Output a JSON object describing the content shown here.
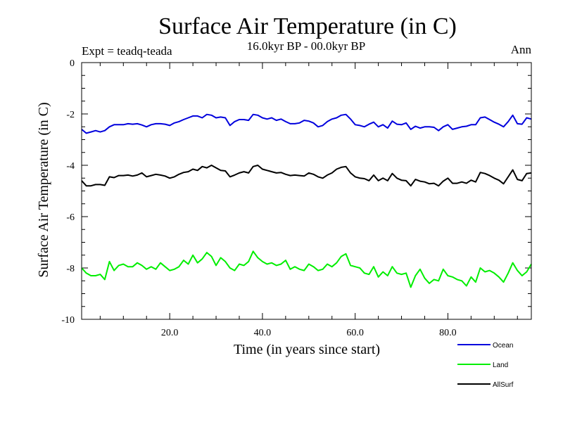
{
  "chart_data": {
    "type": "line",
    "title": "Surface Air Temperature (in C)",
    "subtitle": "16.0kyr BP - 00.0kyr BP",
    "experiment": "Expt = teadq-teada",
    "season": "Ann",
    "xlabel": "Time (in years since start)",
    "ylabel": "Surface Air Temperature (in C)",
    "xlim": [
      1,
      98
    ],
    "ylim": [
      -10,
      0
    ],
    "x_ticks": [
      20,
      40,
      60,
      80
    ],
    "x_tick_labels": [
      "20.0",
      "40.0",
      "60.0",
      "80.0"
    ],
    "y_ticks": [
      0,
      -2,
      -4,
      -6,
      -8,
      -10
    ],
    "y_tick_labels": [
      "0",
      "-2",
      "-4",
      "-6",
      "-8",
      "-10"
    ],
    "x": [
      1,
      2,
      3,
      4,
      5,
      6,
      7,
      8,
      9,
      10,
      11,
      12,
      13,
      14,
      15,
      16,
      17,
      18,
      19,
      20,
      21,
      22,
      23,
      24,
      25,
      26,
      27,
      28,
      29,
      30,
      31,
      32,
      33,
      34,
      35,
      36,
      37,
      38,
      39,
      40,
      41,
      42,
      43,
      44,
      45,
      46,
      47,
      48,
      49,
      50,
      51,
      52,
      53,
      54,
      55,
      56,
      57,
      58,
      59,
      60,
      61,
      62,
      63,
      64,
      65,
      66,
      67,
      68,
      69,
      70,
      71,
      72,
      73,
      74,
      75,
      76,
      77,
      78,
      79,
      80,
      81,
      82,
      83,
      84,
      85,
      86,
      87,
      88,
      89,
      90,
      91,
      92,
      93,
      94,
      95,
      96,
      97,
      98
    ],
    "series": [
      {
        "name": "Ocean",
        "color": "#0000dd",
        "values": [
          -2.6,
          -2.75,
          -2.7,
          -2.65,
          -2.7,
          -2.65,
          -2.5,
          -2.42,
          -2.42,
          -2.42,
          -2.38,
          -2.4,
          -2.38,
          -2.43,
          -2.5,
          -2.42,
          -2.38,
          -2.38,
          -2.4,
          -2.45,
          -2.35,
          -2.3,
          -2.22,
          -2.15,
          -2.08,
          -2.08,
          -2.15,
          -2.02,
          -2.05,
          -2.15,
          -2.12,
          -2.15,
          -2.45,
          -2.3,
          -2.22,
          -2.22,
          -2.25,
          -2.02,
          -2.05,
          -2.15,
          -2.2,
          -2.15,
          -2.25,
          -2.2,
          -2.3,
          -2.38,
          -2.38,
          -2.35,
          -2.25,
          -2.28,
          -2.35,
          -2.5,
          -2.45,
          -2.3,
          -2.2,
          -2.15,
          -2.05,
          -2.02,
          -2.2,
          -2.42,
          -2.45,
          -2.5,
          -2.4,
          -2.32,
          -2.5,
          -2.42,
          -2.55,
          -2.28,
          -2.4,
          -2.42,
          -2.35,
          -2.6,
          -2.48,
          -2.55,
          -2.5,
          -2.5,
          -2.52,
          -2.65,
          -2.5,
          -2.42,
          -2.6,
          -2.55,
          -2.5,
          -2.48,
          -2.42,
          -2.42,
          -2.15,
          -2.12,
          -2.22,
          -2.32,
          -2.4,
          -2.5,
          -2.3,
          -2.05,
          -2.38,
          -2.4,
          -2.15,
          -2.2
        ]
      },
      {
        "name": "Land",
        "color": "#00ee00",
        "values": [
          -8.0,
          -8.2,
          -8.3,
          -8.3,
          -8.25,
          -8.45,
          -7.75,
          -8.1,
          -7.9,
          -7.85,
          -7.95,
          -7.95,
          -7.8,
          -7.9,
          -8.05,
          -7.95,
          -8.05,
          -7.8,
          -7.95,
          -8.1,
          -8.05,
          -7.95,
          -7.7,
          -7.85,
          -7.5,
          -7.8,
          -7.65,
          -7.4,
          -7.55,
          -7.9,
          -7.6,
          -7.75,
          -8.0,
          -8.1,
          -7.85,
          -7.9,
          -7.75,
          -7.35,
          -7.6,
          -7.75,
          -7.85,
          -7.8,
          -7.9,
          -7.85,
          -7.7,
          -8.05,
          -7.95,
          -8.05,
          -8.1,
          -7.85,
          -7.95,
          -8.1,
          -8.05,
          -7.85,
          -7.95,
          -7.8,
          -7.55,
          -7.45,
          -7.9,
          -7.95,
          -8.0,
          -8.2,
          -8.25,
          -7.95,
          -8.35,
          -8.15,
          -8.3,
          -7.95,
          -8.2,
          -8.25,
          -8.2,
          -8.75,
          -8.3,
          -8.05,
          -8.4,
          -8.6,
          -8.45,
          -8.5,
          -8.05,
          -8.3,
          -8.35,
          -8.45,
          -8.5,
          -8.7,
          -8.35,
          -8.55,
          -8.0,
          -8.15,
          -8.1,
          -8.2,
          -8.35,
          -8.55,
          -8.2,
          -7.8,
          -8.1,
          -8.3,
          -8.15,
          -7.85
        ]
      },
      {
        "name": "AllSurf",
        "color": "#000000",
        "values": [
          -4.6,
          -4.8,
          -4.8,
          -4.75,
          -4.75,
          -4.78,
          -4.45,
          -4.48,
          -4.4,
          -4.4,
          -4.38,
          -4.42,
          -4.38,
          -4.3,
          -4.45,
          -4.4,
          -4.35,
          -4.38,
          -4.42,
          -4.5,
          -4.45,
          -4.35,
          -4.28,
          -4.25,
          -4.15,
          -4.2,
          -4.05,
          -4.1,
          -4.0,
          -4.1,
          -4.2,
          -4.22,
          -4.45,
          -4.38,
          -4.3,
          -4.25,
          -4.3,
          -4.05,
          -4.0,
          -4.15,
          -4.2,
          -4.25,
          -4.3,
          -4.28,
          -4.35,
          -4.4,
          -4.38,
          -4.4,
          -4.42,
          -4.3,
          -4.35,
          -4.45,
          -4.5,
          -4.38,
          -4.3,
          -4.15,
          -4.08,
          -4.05,
          -4.3,
          -4.45,
          -4.5,
          -4.52,
          -4.6,
          -4.38,
          -4.6,
          -4.5,
          -4.6,
          -4.32,
          -4.5,
          -4.58,
          -4.6,
          -4.8,
          -4.55,
          -4.62,
          -4.65,
          -4.72,
          -4.7,
          -4.8,
          -4.62,
          -4.5,
          -4.7,
          -4.7,
          -4.65,
          -4.7,
          -4.58,
          -4.65,
          -4.28,
          -4.32,
          -4.4,
          -4.5,
          -4.58,
          -4.72,
          -4.45,
          -4.18,
          -4.55,
          -4.6,
          -4.32,
          -4.3
        ]
      }
    ],
    "legend": [
      "Ocean",
      "Land",
      "AllSurf"
    ],
    "legend_position": "bottom-right"
  }
}
